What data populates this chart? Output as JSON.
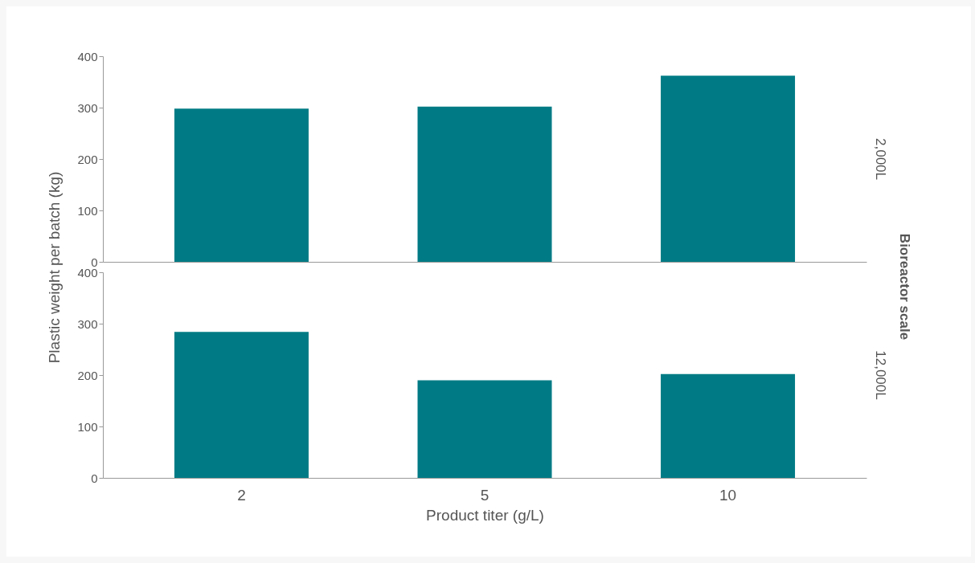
{
  "chart_data": [
    {
      "type": "bar",
      "title": "2,000L",
      "ylabel": "Plastic weight per batch (kg)",
      "annotations": [
        "Bioreactor scale"
      ],
      "categories": [
        "2",
        "5",
        "10"
      ],
      "values": [
        298,
        302,
        362
      ],
      "color": "#007b85",
      "ylim": [
        0,
        400
      ],
      "yticks": [
        0,
        100,
        200,
        300,
        400
      ],
      "tick_labels": "y"
    },
    {
      "type": "bar",
      "title": "12,000L",
      "xlabel": "Product titer (g/L)",
      "categories": [
        "2",
        "5",
        "10"
      ],
      "values": [
        284,
        190,
        202
      ],
      "color": "#007b85",
      "ylim": [
        0,
        400
      ],
      "yticks": [
        0,
        100,
        200,
        300,
        400
      ]
    }
  ]
}
